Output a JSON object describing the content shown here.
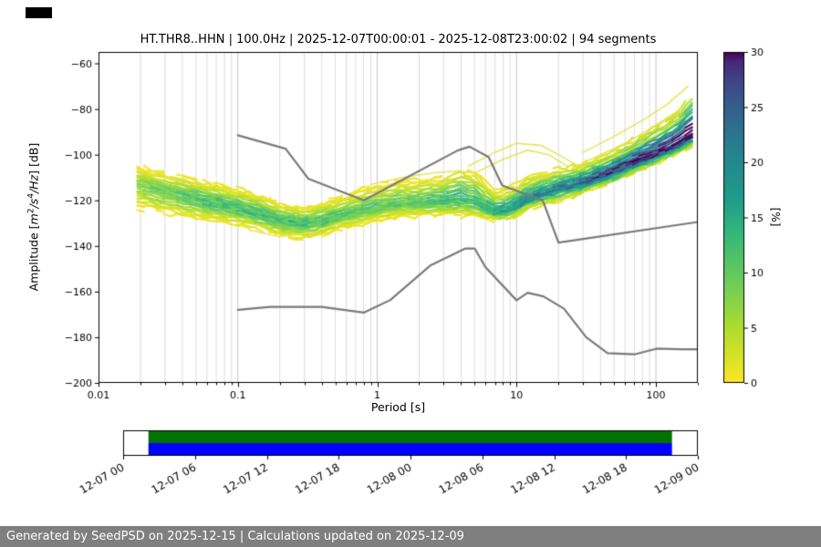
{
  "footer": {
    "text": "Generated by SeedPSD on 2025-12-15 | Calculations updated on 2025-12-09"
  },
  "chart_data": {
    "type": "heatmap",
    "title": "HT.THR8..HHN | 100.0Hz | 2025-12-07T00:00:01 - 2025-12-08T23:00:02 | 94 segments",
    "xlabel": "Period [s]",
    "ylabel_segments": {
      "a": "Amplitude [",
      "b": "m",
      "c": "2",
      "d": "/s",
      "e": "4",
      "f": "/Hz",
      "g": "] [dB]"
    },
    "xlim": [
      0.01,
      200
    ],
    "ylim": [
      -200,
      -55
    ],
    "xscale": "log",
    "grid": true,
    "xticks": [
      0.01,
      0.1,
      1,
      10,
      100
    ],
    "xtick_labels": [
      "0.01",
      "0.1",
      "1",
      "10",
      "100"
    ],
    "yticks": [
      -60,
      -80,
      -100,
      -120,
      -140,
      -160,
      -180,
      -200
    ],
    "ytick_labels": [
      "−60",
      "−80",
      "−100",
      "−120",
      "−140",
      "−160",
      "−180",
      "−200"
    ],
    "colorbar": {
      "label": "[%]",
      "min": 0,
      "max": 30,
      "ticks": [
        0,
        5,
        10,
        15,
        20,
        25,
        30
      ],
      "colormap": "viridis_r",
      "stops": [
        {
          "t": 0.0,
          "c": "#fde725"
        },
        {
          "t": 0.15,
          "c": "#b5de2b"
        },
        {
          "t": 0.3,
          "c": "#6ece58"
        },
        {
          "t": 0.45,
          "c": "#35b779"
        },
        {
          "t": 0.55,
          "c": "#1f9e89"
        },
        {
          "t": 0.7,
          "c": "#26828e"
        },
        {
          "t": 0.8,
          "c": "#31688e"
        },
        {
          "t": 0.9,
          "c": "#3e4a89"
        },
        {
          "t": 0.97,
          "c": "#482878"
        },
        {
          "t": 1.0,
          "c": "#440154"
        }
      ]
    },
    "psd": {
      "periods": [
        0.02,
        0.03,
        0.05,
        0.07,
        0.1,
        0.15,
        0.2,
        0.3,
        0.4,
        0.5,
        0.7,
        1,
        1.5,
        2,
        3,
        4,
        5,
        7,
        9,
        12,
        15,
        20,
        30,
        50,
        70,
        100,
        140,
        180
      ],
      "mode": [
        -113,
        -116,
        -119,
        -121,
        -123,
        -126,
        -129,
        -130,
        -129,
        -127,
        -125,
        -123,
        -121,
        -121,
        -120,
        -119,
        -120,
        -125,
        -124,
        -119,
        -117,
        -115,
        -112,
        -107,
        -103,
        -99,
        -95,
        -91
      ],
      "upper": [
        -105,
        -108,
        -111,
        -113,
        -115,
        -118,
        -121,
        -123,
        -121,
        -119,
        -116,
        -113,
        -111,
        -111,
        -109,
        -106,
        -108,
        -116,
        -114,
        -110,
        -108,
        -106,
        -104,
        -98,
        -93,
        -88,
        -82,
        -72
      ],
      "lower": [
        -124,
        -126,
        -128,
        -129,
        -131,
        -133,
        -135,
        -137,
        -135,
        -133,
        -131,
        -129,
        -127,
        -127,
        -126,
        -127,
        -127,
        -129,
        -128,
        -124,
        -122,
        -120,
        -117,
        -112,
        -108,
        -104,
        -100,
        -96
      ],
      "core_pct": [
        7,
        9,
        11,
        12,
        12,
        12,
        12,
        12,
        12,
        11,
        10,
        10,
        10,
        10,
        12,
        13,
        12,
        14,
        16,
        18,
        20,
        20,
        22,
        25,
        27,
        29,
        30,
        30
      ]
    },
    "noise_models": {
      "color": "#7a7a7a",
      "high": [
        [
          0.1,
          -91.5
        ],
        [
          0.22,
          -97.4
        ],
        [
          0.32,
          -110.5
        ],
        [
          0.8,
          -120
        ],
        [
          3.8,
          -98.1
        ],
        [
          4.6,
          -96.5
        ],
        [
          6.3,
          -101
        ],
        [
          7.9,
          -113.5
        ],
        [
          15.4,
          -120
        ],
        [
          20,
          -138.5
        ],
        [
          200,
          -129.5
        ]
      ],
      "low": [
        [
          0.1,
          -168
        ],
        [
          0.17,
          -166.7
        ],
        [
          0.4,
          -166.7
        ],
        [
          0.8,
          -169.2
        ],
        [
          1.24,
          -163.7
        ],
        [
          2.4,
          -148.6
        ],
        [
          4.3,
          -141.1
        ],
        [
          5,
          -141.1
        ],
        [
          6,
          -149.4
        ],
        [
          10,
          -163.8
        ],
        [
          12,
          -160.5
        ],
        [
          15.6,
          -162.1
        ],
        [
          21.9,
          -167.5
        ],
        [
          31.6,
          -180
        ],
        [
          45,
          -187
        ],
        [
          70,
          -187.5
        ],
        [
          101,
          -185
        ],
        [
          154,
          -185.3
        ],
        [
          200,
          -185.3
        ]
      ]
    },
    "outlier_streaks": [
      [
        [
          4.5,
          -105
        ],
        [
          7,
          -99
        ],
        [
          10,
          -95
        ],
        [
          15,
          -96
        ],
        [
          20,
          -100
        ],
        [
          26,
          -104
        ]
      ],
      [
        [
          5,
          -108
        ],
        [
          8,
          -102
        ],
        [
          12,
          -98
        ],
        [
          17,
          -100
        ],
        [
          23,
          -105
        ]
      ],
      [
        [
          0.9,
          -113
        ],
        [
          1.5,
          -110
        ],
        [
          2.5,
          -108
        ],
        [
          4,
          -107
        ]
      ],
      [
        [
          0.12,
          -133
        ],
        [
          0.2,
          -136
        ],
        [
          0.35,
          -134
        ],
        [
          0.6,
          -129
        ]
      ],
      [
        [
          30,
          -99
        ],
        [
          50,
          -92
        ],
        [
          80,
          -85
        ],
        [
          120,
          -78
        ],
        [
          170,
          -70
        ]
      ],
      [
        [
          25,
          -106
        ],
        [
          40,
          -100
        ],
        [
          65,
          -94
        ],
        [
          100,
          -87
        ],
        [
          150,
          -80
        ]
      ],
      [
        [
          7,
          -120
        ],
        [
          10,
          -116
        ],
        [
          14,
          -111
        ],
        [
          20,
          -108
        ]
      ],
      [
        [
          40,
          -104
        ],
        [
          70,
          -97
        ],
        [
          110,
          -90
        ],
        [
          160,
          -83
        ]
      ]
    ],
    "timeline": {
      "ticks": [
        "12-07 00",
        "12-07 06",
        "12-07 12",
        "12-07 18",
        "12-08 00",
        "12-08 06",
        "12-08 12",
        "12-08 18",
        "12-09 00"
      ],
      "bars": [
        {
          "color": "#007400",
          "row": 0,
          "from": 0.044,
          "to": 0.955
        },
        {
          "color": "#0000ff",
          "row": 1,
          "from": 0.044,
          "to": 0.955
        }
      ]
    }
  }
}
